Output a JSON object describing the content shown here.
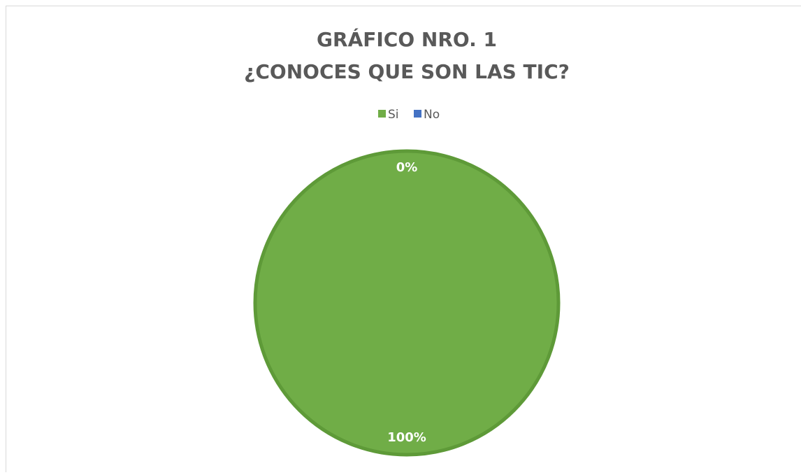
{
  "chart_data": {
    "type": "pie",
    "title": [
      "GRÁFICO NRO. 1",
      "¿CONOCES QUE SON LAS TIC?"
    ],
    "categories": [
      "Si",
      "No"
    ],
    "values": [
      100,
      0
    ],
    "value_labels": [
      "100%",
      "0%"
    ],
    "colors": [
      "#70ad47",
      "#4472c4"
    ],
    "legend": "top"
  }
}
